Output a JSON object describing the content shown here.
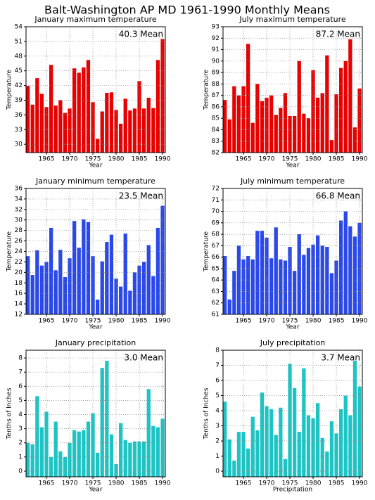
{
  "title": "Balt-Washington AP MD  1961-1990 Monthly Means",
  "chart_data": [
    {
      "type": "bar",
      "title": "January maximum temperature",
      "annotation": "40.3 Mean",
      "ylabel": "Temperature",
      "xlabel": "Year",
      "color": "#e60000",
      "x": [
        1961,
        1962,
        1963,
        1964,
        1965,
        1966,
        1967,
        1968,
        1969,
        1970,
        1971,
        1972,
        1973,
        1974,
        1975,
        1976,
        1977,
        1978,
        1979,
        1980,
        1981,
        1982,
        1983,
        1984,
        1985,
        1986,
        1987,
        1988,
        1989,
        1990
      ],
      "values": [
        41.9,
        38.1,
        43.5,
        40.3,
        37.6,
        46.2,
        37.9,
        39,
        36.4,
        37.3,
        45.5,
        44.6,
        45.7,
        47.2,
        38.6,
        31.1,
        36.7,
        40.5,
        40.6,
        37,
        34.2,
        39.3,
        36.9,
        37.3,
        42.9,
        37.3,
        39.5,
        37.4,
        47.2,
        51.5
      ],
      "xlim": [
        1960.6,
        1990.6
      ],
      "xticks": [
        1965,
        1970,
        1975,
        1980,
        1985,
        1990
      ],
      "ylim": [
        28.3,
        54
      ],
      "yticks": [
        30,
        33,
        36,
        39,
        42,
        45,
        48,
        51,
        54
      ],
      "grid": true
    },
    {
      "type": "bar",
      "title": "July maximum temperature",
      "annotation": "87.2 Mean",
      "ylabel": "Temperature",
      "xlabel": "Year",
      "color": "#e60000",
      "x": [
        1961,
        1962,
        1963,
        1964,
        1965,
        1966,
        1967,
        1968,
        1969,
        1970,
        1971,
        1972,
        1973,
        1974,
        1975,
        1976,
        1977,
        1978,
        1979,
        1980,
        1981,
        1982,
        1983,
        1984,
        1985,
        1986,
        1987,
        1988,
        1989,
        1990
      ],
      "values": [
        86.6,
        84.9,
        87.8,
        87,
        87.8,
        91.5,
        84.6,
        88,
        86.5,
        86.8,
        87,
        85.3,
        85.9,
        87.2,
        85.2,
        85.2,
        90,
        85.4,
        85,
        89.2,
        86.8,
        87.2,
        90.5,
        83.1,
        87.1,
        89.4,
        90,
        91.9,
        84.2,
        87.6
      ],
      "xlim": [
        1960.6,
        1990.6
      ],
      "xticks": [
        1965,
        1970,
        1975,
        1980,
        1985,
        1990
      ],
      "ylim": [
        82,
        93
      ],
      "yticks": [
        82,
        83,
        84,
        85,
        86,
        87,
        88,
        89,
        90,
        91,
        92,
        93
      ],
      "grid": true
    },
    {
      "type": "bar",
      "title": "January minimum temperature",
      "annotation": "23.5 Mean",
      "ylabel": "Temperature",
      "xlabel": "Year",
      "color": "#2a48e8",
      "x": [
        1961,
        1962,
        1963,
        1964,
        1965,
        1966,
        1967,
        1968,
        1969,
        1970,
        1971,
        1972,
        1973,
        1974,
        1975,
        1976,
        1977,
        1978,
        1979,
        1980,
        1981,
        1982,
        1983,
        1984,
        1985,
        1986,
        1987,
        1988,
        1989,
        1990
      ],
      "values": [
        23.1,
        19.5,
        24.2,
        21.3,
        22,
        28.5,
        20.4,
        24.3,
        19.1,
        22.7,
        29.8,
        24.7,
        30.1,
        29.6,
        23.1,
        14.8,
        22.1,
        25.8,
        27.2,
        18.8,
        17.3,
        27.4,
        16.5,
        20,
        21.3,
        22,
        25.2,
        19.3,
        28.5,
        32.7
      ],
      "xlim": [
        1960.6,
        1990.6
      ],
      "xticks": [
        1965,
        1970,
        1975,
        1980,
        1985,
        1990
      ],
      "ylim": [
        12,
        36
      ],
      "yticks": [
        12,
        14,
        16,
        18,
        20,
        22,
        24,
        26,
        28,
        30,
        32,
        34,
        36
      ],
      "grid": true
    },
    {
      "type": "bar",
      "title": "July minimum temperature",
      "annotation": "66.8 Mean",
      "ylabel": "Temperature",
      "xlabel": "Year",
      "color": "#2a48e8",
      "x": [
        1961,
        1962,
        1963,
        1964,
        1965,
        1966,
        1967,
        1968,
        1969,
        1970,
        1971,
        1972,
        1973,
        1974,
        1975,
        1976,
        1977,
        1978,
        1979,
        1980,
        1981,
        1982,
        1983,
        1984,
        1985,
        1986,
        1987,
        1988,
        1989,
        1990
      ],
      "values": [
        66.1,
        62.3,
        64.8,
        67,
        65.8,
        66.1,
        65.8,
        68.3,
        68.3,
        67.7,
        65.9,
        68.6,
        65.8,
        65.7,
        66.9,
        64.8,
        68,
        66.2,
        66.8,
        67.1,
        67.9,
        67,
        66.9,
        64.6,
        65.7,
        69.2,
        70,
        68.7,
        67.8,
        69
      ],
      "xlim": [
        1960.6,
        1990.6
      ],
      "xticks": [
        1965,
        1970,
        1975,
        1980,
        1985,
        1990
      ],
      "ylim": [
        61,
        72
      ],
      "yticks": [
        61,
        62,
        63,
        64,
        65,
        66,
        67,
        68,
        69,
        70,
        71,
        72
      ],
      "grid": true
    },
    {
      "type": "bar",
      "title": "January precipitation",
      "annotation": "3.0 Mean",
      "ylabel": "Tenths of Inches",
      "xlabel": "Year",
      "color": "#1ec4c4",
      "x": [
        1961,
        1962,
        1963,
        1964,
        1965,
        1966,
        1967,
        1968,
        1969,
        1970,
        1971,
        1972,
        1973,
        1974,
        1975,
        1976,
        1977,
        1978,
        1979,
        1980,
        1981,
        1982,
        1983,
        1984,
        1985,
        1986,
        1987,
        1988,
        1989,
        1990
      ],
      "values": [
        2,
        1.9,
        5.3,
        3.1,
        4.2,
        1,
        3.5,
        1.4,
        1,
        2,
        2.9,
        2.8,
        2.9,
        3.5,
        4.1,
        1.3,
        7.3,
        7.8,
        2.6,
        0.5,
        3.4,
        2.2,
        2,
        2.1,
        2.1,
        2.1,
        5.8,
        3.2,
        3.1,
        3.7
      ],
      "xlim": [
        1960.6,
        1990.6
      ],
      "xticks": [
        1965,
        1970,
        1975,
        1980,
        1985,
        1990
      ],
      "ylim": [
        -0.4,
        8.55
      ],
      "yticks": [
        0,
        1,
        2,
        3,
        4,
        5,
        6,
        7,
        8
      ],
      "grid": true
    },
    {
      "type": "bar",
      "title": "July precipitation",
      "annotation": "3.7 Mean",
      "ylabel": "Tenths of Inches",
      "xlabel": "Precipitation",
      "color": "#1ec4c4",
      "x": [
        1961,
        1962,
        1963,
        1964,
        1965,
        1966,
        1967,
        1968,
        1969,
        1970,
        1971,
        1972,
        1973,
        1974,
        1975,
        1976,
        1977,
        1978,
        1979,
        1980,
        1981,
        1982,
        1983,
        1984,
        1985,
        1986,
        1987,
        1988,
        1989,
        1990
      ],
      "values": [
        4.6,
        2.1,
        0.7,
        2.6,
        2.6,
        1.5,
        3.6,
        2.7,
        5.2,
        4.3,
        4.1,
        2.4,
        4.2,
        0.8,
        7.1,
        5.5,
        2.6,
        6.8,
        3.7,
        3.5,
        4.5,
        2.2,
        1.3,
        3.3,
        2.5,
        4.1,
        5,
        3.7,
        7.3,
        5.6
      ],
      "xlim": [
        1960.6,
        1990.6
      ],
      "xticks": [
        1965,
        1970,
        1975,
        1980,
        1985,
        1990
      ],
      "ylim": [
        -0.37,
        8
      ],
      "yticks": [
        0,
        1,
        2,
        3,
        4,
        5,
        6,
        7,
        8
      ],
      "grid": true
    }
  ]
}
